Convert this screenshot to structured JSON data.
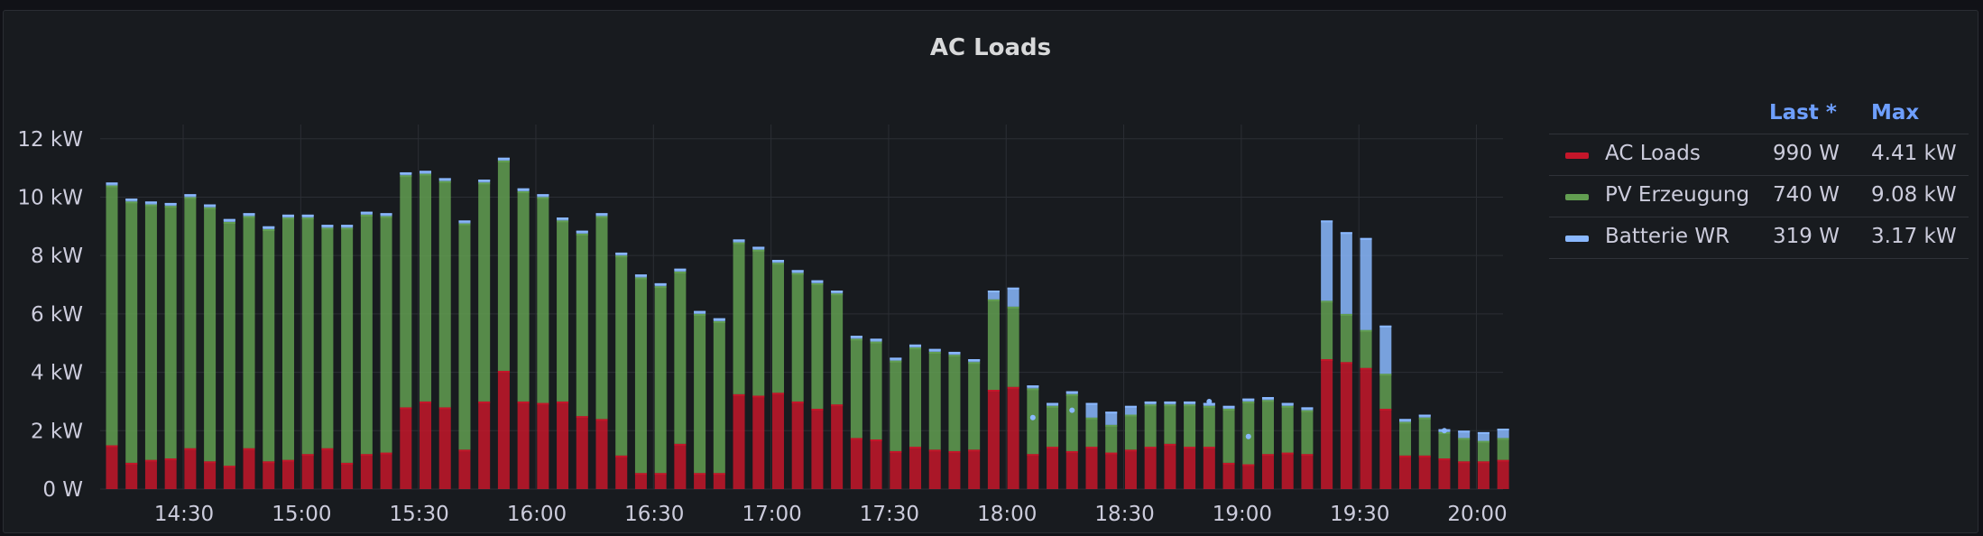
{
  "panel": {
    "title": "AC Loads"
  },
  "legend": {
    "headers": {
      "last": "Last *",
      "max": "Max"
    },
    "rows": [
      {
        "name": "AC Loads",
        "color": "#c4162a",
        "last": "990 W",
        "max": "4.41 kW"
      },
      {
        "name": "PV Erzeugung",
        "color": "#629e51",
        "last": "740 W",
        "max": "9.08 kW"
      },
      {
        "name": "Batterie WR",
        "color": "#8ab8ff",
        "last": "319 W",
        "max": "3.17 kW"
      }
    ]
  },
  "chart_data": {
    "type": "bar",
    "stacked": true,
    "title": "AC Loads",
    "x_start": "14:10",
    "x_step_minutes": 5,
    "xticks": [
      "14:30",
      "15:00",
      "15:30",
      "16:00",
      "16:30",
      "17:00",
      "17:30",
      "18:00",
      "18:30",
      "19:00",
      "19:30",
      "20:00"
    ],
    "yticks": [
      "0 W",
      "2 kW",
      "4 kW",
      "6 kW",
      "8 kW",
      "10 kW",
      "12 kW"
    ],
    "ylim": [
      0,
      12
    ],
    "y_unit": "kW",
    "grid": true,
    "legend_position": "right",
    "series": [
      {
        "name": "AC Loads",
        "color": "#c4162a",
        "values": [
          1.5,
          0.9,
          1.0,
          1.05,
          1.4,
          0.95,
          0.8,
          1.4,
          0.95,
          1.0,
          1.2,
          1.4,
          0.9,
          1.2,
          1.25,
          2.8,
          3.0,
          2.8,
          1.35,
          3.0,
          4.05,
          3.0,
          2.95,
          3.0,
          2.5,
          2.4,
          1.15,
          0.55,
          0.55,
          1.55,
          0.55,
          0.55,
          3.25,
          3.2,
          3.3,
          3.0,
          2.75,
          2.9,
          1.75,
          1.7,
          1.3,
          1.45,
          1.35,
          1.3,
          1.35,
          3.4,
          3.5,
          1.2,
          1.45,
          1.3,
          1.45,
          1.25,
          1.35,
          1.45,
          1.55,
          1.45,
          1.45,
          0.9,
          0.85,
          1.2,
          1.25,
          1.2,
          4.45,
          4.35,
          4.15,
          2.75,
          1.15,
          1.15,
          1.05,
          0.95,
          0.95,
          1.0
        ]
      },
      {
        "name": "PV Erzeugung",
        "color": "#629e51",
        "values": [
          8.9,
          8.95,
          8.75,
          8.65,
          8.6,
          8.7,
          8.35,
          7.95,
          7.95,
          8.3,
          8.1,
          7.55,
          8.05,
          8.2,
          8.1,
          7.95,
          7.8,
          7.75,
          7.75,
          7.5,
          7.2,
          7.2,
          7.05,
          6.2,
          6.25,
          6.95,
          6.85,
          6.7,
          6.4,
          5.9,
          5.45,
          5.2,
          5.2,
          5.0,
          4.45,
          4.4,
          4.3,
          3.8,
          3.4,
          3.35,
          3.1,
          3.4,
          3.35,
          3.3,
          3.0,
          3.1,
          2.75,
          2.25,
          1.4,
          1.95,
          1.0,
          0.95,
          1.2,
          1.45,
          1.35,
          1.45,
          1.4,
          1.85,
          2.15,
          1.85,
          1.6,
          1.5,
          2.0,
          1.65,
          1.3,
          1.2,
          1.15,
          1.3,
          0.9,
          0.8,
          0.7,
          0.75
        ]
      },
      {
        "name": "Batterie WR",
        "color": "#8ab8ff",
        "values": [
          0.1,
          0.1,
          0.1,
          0.1,
          0.1,
          0.1,
          0.1,
          0.1,
          0.1,
          0.1,
          0.1,
          0.1,
          0.1,
          0.1,
          0.1,
          0.1,
          0.1,
          0.1,
          0.1,
          0.1,
          0.1,
          0.1,
          0.1,
          0.1,
          0.1,
          0.1,
          0.1,
          0.1,
          0.1,
          0.1,
          0.1,
          0.1,
          0.1,
          0.1,
          0.1,
          0.1,
          0.1,
          0.1,
          0.1,
          0.1,
          0.1,
          0.1,
          0.1,
          0.1,
          0.1,
          0.3,
          0.65,
          0.1,
          0.1,
          0.1,
          0.5,
          0.45,
          0.3,
          0.1,
          0.1,
          0.1,
          0.1,
          0.1,
          0.1,
          0.1,
          0.1,
          0.1,
          2.75,
          2.8,
          3.15,
          1.65,
          0.1,
          0.1,
          0.1,
          0.25,
          0.3,
          0.32
        ]
      }
    ],
    "markers": [
      {
        "index": 47,
        "value": 2.45
      },
      {
        "index": 49,
        "value": 2.7
      },
      {
        "index": 56,
        "value": 3.0
      },
      {
        "index": 58,
        "value": 1.8
      },
      {
        "index": 68,
        "value": 2.0
      }
    ]
  }
}
